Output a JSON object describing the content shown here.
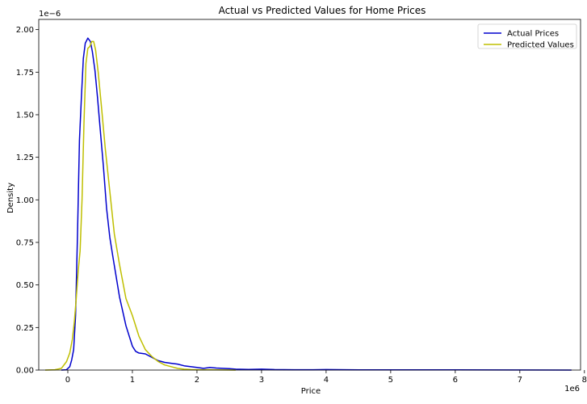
{
  "chart_data": {
    "type": "line",
    "title": "Actual vs Predicted Values for Home Prices",
    "xlabel": "Price",
    "ylabel": "Density",
    "x_offset_text": "1e6",
    "y_offset_text": "1e−6",
    "xlim": [
      -0.45,
      7.94
    ],
    "ylim": [
      0,
      2.06
    ],
    "xticks": [
      0,
      1,
      2,
      3,
      4,
      5,
      6,
      7,
      8
    ],
    "xtick_labels": [
      "0",
      "1",
      "2",
      "3",
      "4",
      "5",
      "6",
      "7",
      "8"
    ],
    "yticks": [
      0,
      0.25,
      0.5,
      0.75,
      1.0,
      1.25,
      1.5,
      1.75,
      2.0
    ],
    "ytick_labels": [
      "0.00",
      "0.25",
      "0.50",
      "0.75",
      "1.00",
      "1.25",
      "1.50",
      "1.75",
      "2.00"
    ],
    "grid": false,
    "legend_position": "top-right",
    "series": [
      {
        "name": "Actual Prices",
        "color": "#0000cd",
        "x": [
          -0.1,
          -0.02,
          0.03,
          0.06,
          0.09,
          0.12,
          0.15,
          0.18,
          0.21,
          0.24,
          0.27,
          0.31,
          0.35,
          0.38,
          0.42,
          0.46,
          0.5,
          0.55,
          0.6,
          0.65,
          0.7,
          0.8,
          0.9,
          1.0,
          1.05,
          1.1,
          1.2,
          1.3,
          1.4,
          1.5,
          1.6,
          1.7,
          1.8,
          1.9,
          2.0,
          2.1,
          2.2,
          2.3,
          2.4,
          2.5,
          2.6,
          2.8,
          3.0,
          3.2,
          3.5,
          3.8,
          4.0,
          4.5,
          5.0,
          6.0,
          7.0,
          7.8
        ],
        "values": [
          0.0,
          0.002,
          0.02,
          0.06,
          0.12,
          0.32,
          0.8,
          1.35,
          1.6,
          1.83,
          1.92,
          1.95,
          1.93,
          1.87,
          1.76,
          1.6,
          1.42,
          1.2,
          0.95,
          0.78,
          0.66,
          0.43,
          0.26,
          0.14,
          0.11,
          0.1,
          0.095,
          0.075,
          0.055,
          0.045,
          0.04,
          0.035,
          0.025,
          0.02,
          0.015,
          0.01,
          0.015,
          0.012,
          0.01,
          0.008,
          0.005,
          0.004,
          0.005,
          0.003,
          0.002,
          0.002,
          0.003,
          0.001,
          0.001,
          0.0008,
          0.0005,
          0.0002
        ]
      },
      {
        "name": "Predicted Values",
        "color": "#bfbf00",
        "x": [
          -0.35,
          -0.2,
          -0.1,
          -0.02,
          0.03,
          0.07,
          0.1,
          0.13,
          0.16,
          0.19,
          0.22,
          0.25,
          0.28,
          0.31,
          0.34,
          0.37,
          0.4,
          0.43,
          0.47,
          0.52,
          0.58,
          0.65,
          0.72,
          0.8,
          0.9,
          1.0,
          1.1,
          1.2,
          1.3,
          1.4,
          1.5,
          1.6,
          1.7,
          1.8,
          1.9,
          2.0,
          2.3,
          2.6
        ],
        "values": [
          0.0,
          0.002,
          0.01,
          0.05,
          0.1,
          0.18,
          0.28,
          0.42,
          0.58,
          0.7,
          1.0,
          1.45,
          1.8,
          1.89,
          1.9,
          1.93,
          1.93,
          1.88,
          1.75,
          1.55,
          1.3,
          1.05,
          0.8,
          0.62,
          0.42,
          0.32,
          0.2,
          0.12,
          0.08,
          0.05,
          0.03,
          0.02,
          0.01,
          0.005,
          0.003,
          0.002,
          0.001,
          0.0
        ]
      }
    ]
  }
}
